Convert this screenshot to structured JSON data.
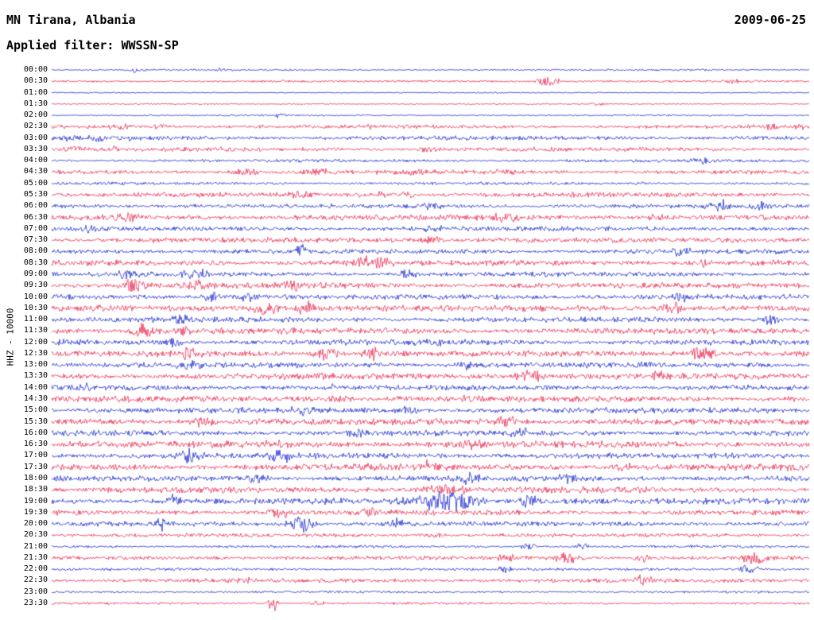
{
  "chart_data": {
    "type": "line",
    "subtype": "helicorder-seismogram",
    "title": "MN Tirana, Albania",
    "date_label": "2009-06-25",
    "filter_label": "Applied filter: WWSSN-SP",
    "ylabel": "HHZ - 10000",
    "station": "MN Tirana",
    "network": "MN",
    "channel": "HHZ",
    "scale": "10000",
    "filter": "WWSSN-SP",
    "minutes_per_row": 30,
    "x_axis": "time within each 30-minute row",
    "amplitude_units": "relative trace amplitude (px), events as [position_fraction, width_fraction, amplitude]",
    "colors": {
      "blue": "#0013c8",
      "red": "#e8133f",
      "background": "#ffffff",
      "text": "#000000"
    },
    "rows": [
      {
        "time": "00:00",
        "color": "blue",
        "amp": 0.8,
        "events": [
          [
            0.11,
            0.008,
            2.0
          ],
          [
            0.22,
            0.006,
            1.3
          ]
        ]
      },
      {
        "time": "00:30",
        "color": "red",
        "amp": 1.0,
        "events": [
          [
            0.655,
            0.012,
            3.5
          ],
          [
            0.9,
            0.01,
            1.3
          ]
        ]
      },
      {
        "time": "01:00",
        "color": "blue",
        "amp": 0.55,
        "events": []
      },
      {
        "time": "01:30",
        "color": "red",
        "amp": 0.6,
        "events": [
          [
            0.72,
            0.006,
            1.4
          ]
        ]
      },
      {
        "time": "02:00",
        "color": "blue",
        "amp": 0.7,
        "events": [
          [
            0.3,
            0.005,
            2.2
          ]
        ]
      },
      {
        "time": "02:30",
        "color": "red",
        "amp": 1.6,
        "events": [
          [
            0.09,
            0.01,
            2.4
          ],
          [
            0.14,
            0.008,
            2.2
          ],
          [
            0.41,
            0.01,
            2.0
          ],
          [
            0.95,
            0.008,
            2.8
          ],
          [
            0.985,
            0.006,
            2.4
          ]
        ]
      },
      {
        "time": "03:00",
        "color": "blue",
        "amp": 1.8,
        "events": [
          [
            0.02,
            0.008,
            2.6
          ],
          [
            0.06,
            0.008,
            3.0
          ],
          [
            0.105,
            0.008,
            2.4
          ]
        ]
      },
      {
        "time": "03:30",
        "color": "red",
        "amp": 1.8,
        "events": [
          [
            0.03,
            0.008,
            2.4
          ],
          [
            0.08,
            0.008,
            2.4
          ],
          [
            0.5,
            0.012,
            2.0
          ]
        ]
      },
      {
        "time": "04:00",
        "color": "blue",
        "amp": 1.3,
        "events": [
          [
            0.86,
            0.01,
            2.4
          ]
        ]
      },
      {
        "time": "04:30",
        "color": "red",
        "amp": 1.8,
        "events": [
          [
            0.26,
            0.012,
            3.0
          ],
          [
            0.35,
            0.012,
            3.0
          ],
          [
            0.48,
            0.01,
            2.4
          ],
          [
            0.6,
            0.01,
            2.4
          ]
        ]
      },
      {
        "time": "05:00",
        "color": "blue",
        "amp": 1.2,
        "events": [
          [
            0.77,
            0.008,
            2.0
          ]
        ]
      },
      {
        "time": "05:30",
        "color": "red",
        "amp": 2.0,
        "events": [
          [
            0.33,
            0.012,
            3.0
          ],
          [
            0.43,
            0.012,
            3.4
          ],
          [
            0.47,
            0.008,
            2.8
          ]
        ]
      },
      {
        "time": "06:00",
        "color": "blue",
        "amp": 1.8,
        "events": [
          [
            0.5,
            0.01,
            2.8
          ],
          [
            0.88,
            0.012,
            4.4
          ],
          [
            0.935,
            0.008,
            3.6
          ]
        ]
      },
      {
        "time": "06:30",
        "color": "red",
        "amp": 2.4,
        "events": [
          [
            0.1,
            0.012,
            4.0
          ],
          [
            0.6,
            0.012,
            3.2
          ],
          [
            0.8,
            0.01,
            2.8
          ]
        ]
      },
      {
        "time": "07:00",
        "color": "blue",
        "amp": 2.0,
        "events": [
          [
            0.05,
            0.008,
            3.0
          ],
          [
            0.5,
            0.012,
            2.4
          ]
        ]
      },
      {
        "time": "07:30",
        "color": "red",
        "amp": 2.2,
        "events": [
          [
            0.5,
            0.01,
            3.4
          ]
        ]
      },
      {
        "time": "08:00",
        "color": "blue",
        "amp": 2.0,
        "events": [
          [
            0.33,
            0.006,
            5.5
          ],
          [
            0.83,
            0.01,
            2.8
          ]
        ]
      },
      {
        "time": "08:30",
        "color": "red",
        "amp": 2.4,
        "events": [
          [
            0.42,
            0.02,
            5.0
          ],
          [
            0.86,
            0.004,
            4.5
          ]
        ]
      },
      {
        "time": "09:00",
        "color": "blue",
        "amp": 2.0,
        "events": [
          [
            0.1,
            0.01,
            3.8
          ],
          [
            0.19,
            0.012,
            4.4
          ],
          [
            0.47,
            0.01,
            2.8
          ]
        ]
      },
      {
        "time": "09:30",
        "color": "red",
        "amp": 2.4,
        "events": [
          [
            0.11,
            0.01,
            6.0
          ],
          [
            0.19,
            0.01,
            4.0
          ],
          [
            0.32,
            0.01,
            3.4
          ]
        ]
      },
      {
        "time": "10:00",
        "color": "blue",
        "amp": 2.2,
        "events": [
          [
            0.21,
            0.01,
            3.8
          ],
          [
            0.26,
            0.008,
            3.8
          ],
          [
            0.83,
            0.01,
            3.4
          ]
        ]
      },
      {
        "time": "10:30",
        "color": "red",
        "amp": 2.6,
        "events": [
          [
            0.28,
            0.014,
            5.0
          ],
          [
            0.335,
            0.01,
            4.8
          ],
          [
            0.82,
            0.01,
            5.4
          ]
        ]
      },
      {
        "time": "11:00",
        "color": "blue",
        "amp": 2.2,
        "events": [
          [
            0.17,
            0.01,
            3.8
          ],
          [
            0.95,
            0.008,
            3.8
          ]
        ]
      },
      {
        "time": "11:30",
        "color": "red",
        "amp": 2.6,
        "events": [
          [
            0.12,
            0.012,
            5.4
          ],
          [
            0.175,
            0.008,
            4.4
          ]
        ]
      },
      {
        "time": "12:00",
        "color": "blue",
        "amp": 2.4,
        "events": [
          [
            0.16,
            0.008,
            3.4
          ],
          [
            0.5,
            0.012,
            2.8
          ]
        ]
      },
      {
        "time": "12:30",
        "color": "red",
        "amp": 2.6,
        "events": [
          [
            0.18,
            0.01,
            4.4
          ],
          [
            0.36,
            0.012,
            5.0
          ],
          [
            0.425,
            0.01,
            4.4
          ],
          [
            0.86,
            0.012,
            6.0
          ]
        ]
      },
      {
        "time": "13:00",
        "color": "blue",
        "amp": 2.4,
        "events": [
          [
            0.18,
            0.01,
            3.4
          ],
          [
            0.55,
            0.012,
            2.8
          ]
        ]
      },
      {
        "time": "13:30",
        "color": "red",
        "amp": 2.6,
        "events": [
          [
            0.63,
            0.015,
            4.4
          ],
          [
            0.8,
            0.01,
            3.4
          ]
        ]
      },
      {
        "time": "14:00",
        "color": "blue",
        "amp": 2.4,
        "events": [
          [
            0.045,
            0.006,
            4.4
          ],
          [
            0.38,
            0.01,
            2.8
          ]
        ]
      },
      {
        "time": "14:30",
        "color": "red",
        "amp": 2.6,
        "events": [
          [
            0.38,
            0.012,
            3.4
          ],
          [
            0.55,
            0.012,
            3.4
          ]
        ]
      },
      {
        "time": "15:00",
        "color": "blue",
        "amp": 2.4,
        "events": [
          [
            0.33,
            0.01,
            4.4
          ],
          [
            0.47,
            0.01,
            3.4
          ]
        ]
      },
      {
        "time": "15:30",
        "color": "red",
        "amp": 2.8,
        "events": [
          [
            0.2,
            0.012,
            3.4
          ],
          [
            0.6,
            0.012,
            3.4
          ]
        ]
      },
      {
        "time": "16:00",
        "color": "blue",
        "amp": 2.4,
        "events": [
          [
            0.4,
            0.01,
            3.4
          ],
          [
            0.62,
            0.01,
            3.4
          ]
        ]
      },
      {
        "time": "16:30",
        "color": "red",
        "amp": 2.8,
        "events": [
          [
            0.3,
            0.012,
            3.4
          ],
          [
            0.55,
            0.012,
            3.8
          ]
        ]
      },
      {
        "time": "17:00",
        "color": "blue",
        "amp": 2.4,
        "events": [
          [
            0.18,
            0.012,
            5.4
          ],
          [
            0.3,
            0.012,
            5.4
          ]
        ]
      },
      {
        "time": "17:30",
        "color": "red",
        "amp": 2.8,
        "events": [
          [
            0.5,
            0.012,
            3.4
          ],
          [
            0.75,
            0.012,
            3.4
          ]
        ]
      },
      {
        "time": "18:00",
        "color": "blue",
        "amp": 2.4,
        "events": [
          [
            0.27,
            0.01,
            3.8
          ],
          [
            0.55,
            0.012,
            4.4
          ],
          [
            0.68,
            0.01,
            3.8
          ]
        ]
      },
      {
        "time": "18:30",
        "color": "red",
        "amp": 2.6,
        "events": [
          [
            0.52,
            0.02,
            4.0
          ]
        ]
      },
      {
        "time": "19:00",
        "color": "blue",
        "amp": 2.6,
        "events": [
          [
            0.16,
            0.006,
            5.0
          ],
          [
            0.52,
            0.03,
            7.5
          ],
          [
            0.63,
            0.012,
            5.0
          ]
        ]
      },
      {
        "time": "19:30",
        "color": "red",
        "amp": 2.2,
        "events": [
          [
            0.3,
            0.01,
            4.0
          ],
          [
            0.42,
            0.01,
            3.4
          ]
        ]
      },
      {
        "time": "20:00",
        "color": "blue",
        "amp": 2.0,
        "events": [
          [
            0.145,
            0.005,
            5.0
          ],
          [
            0.33,
            0.012,
            7.0
          ],
          [
            0.46,
            0.01,
            4.0
          ]
        ]
      },
      {
        "time": "20:30",
        "color": "red",
        "amp": 1.6,
        "events": [
          [
            0.5,
            0.012,
            2.0
          ]
        ]
      },
      {
        "time": "21:00",
        "color": "blue",
        "amp": 1.2,
        "events": [
          [
            0.63,
            0.008,
            2.4
          ],
          [
            0.7,
            0.008,
            2.4
          ]
        ]
      },
      {
        "time": "21:30",
        "color": "red",
        "amp": 1.8,
        "events": [
          [
            0.6,
            0.008,
            4.0
          ],
          [
            0.68,
            0.01,
            4.4
          ],
          [
            0.78,
            0.008,
            3.8
          ],
          [
            0.93,
            0.012,
            4.4
          ]
        ]
      },
      {
        "time": "22:00",
        "color": "blue",
        "amp": 1.2,
        "events": [
          [
            0.6,
            0.008,
            2.4
          ],
          [
            0.92,
            0.01,
            3.4
          ]
        ]
      },
      {
        "time": "22:30",
        "color": "red",
        "amp": 1.8,
        "events": [
          [
            0.25,
            0.01,
            2.4
          ],
          [
            0.78,
            0.01,
            4.0
          ]
        ]
      },
      {
        "time": "23:00",
        "color": "blue",
        "amp": 1.0,
        "events": []
      },
      {
        "time": "23:30",
        "color": "red",
        "amp": 1.0,
        "events": [
          [
            0.292,
            0.004,
            9.0
          ],
          [
            0.35,
            0.008,
            2.0
          ]
        ]
      }
    ]
  }
}
